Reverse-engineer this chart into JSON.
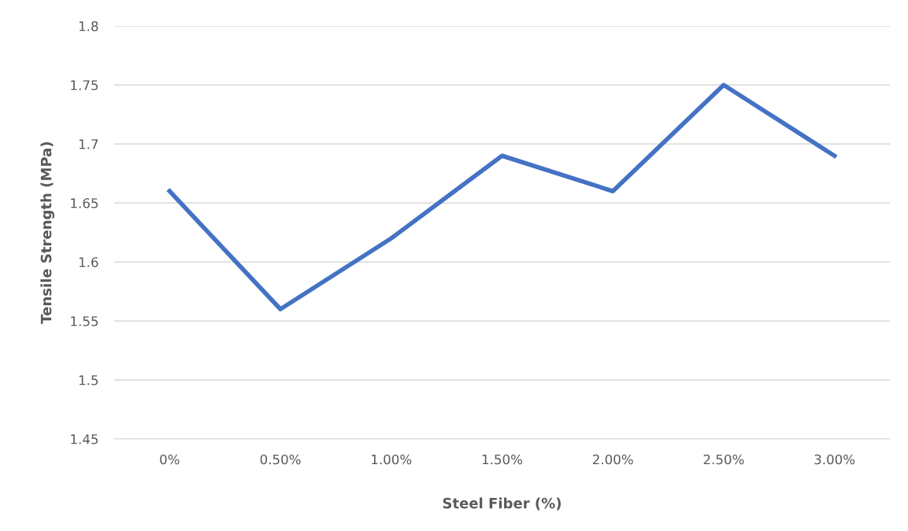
{
  "chart_data": {
    "type": "line",
    "xlabel": "Steel Fiber (%)",
    "ylabel": "Tensile Strength (MPa)",
    "categories": [
      "0%",
      "0.50%",
      "1.00%",
      "1.50%",
      "2.00%",
      "2.50%",
      "3.00%"
    ],
    "series": [
      {
        "color": "#4472c4",
        "values": [
          1.66,
          1.56,
          1.62,
          1.69,
          1.66,
          1.75,
          1.69
        ]
      }
    ],
    "ylim": [
      1.45,
      1.8
    ],
    "yticks": [
      1.45,
      1.5,
      1.55,
      1.6,
      1.65,
      1.7,
      1.75,
      1.8
    ],
    "grid": "y",
    "marker": "none",
    "line_style": "solid"
  }
}
